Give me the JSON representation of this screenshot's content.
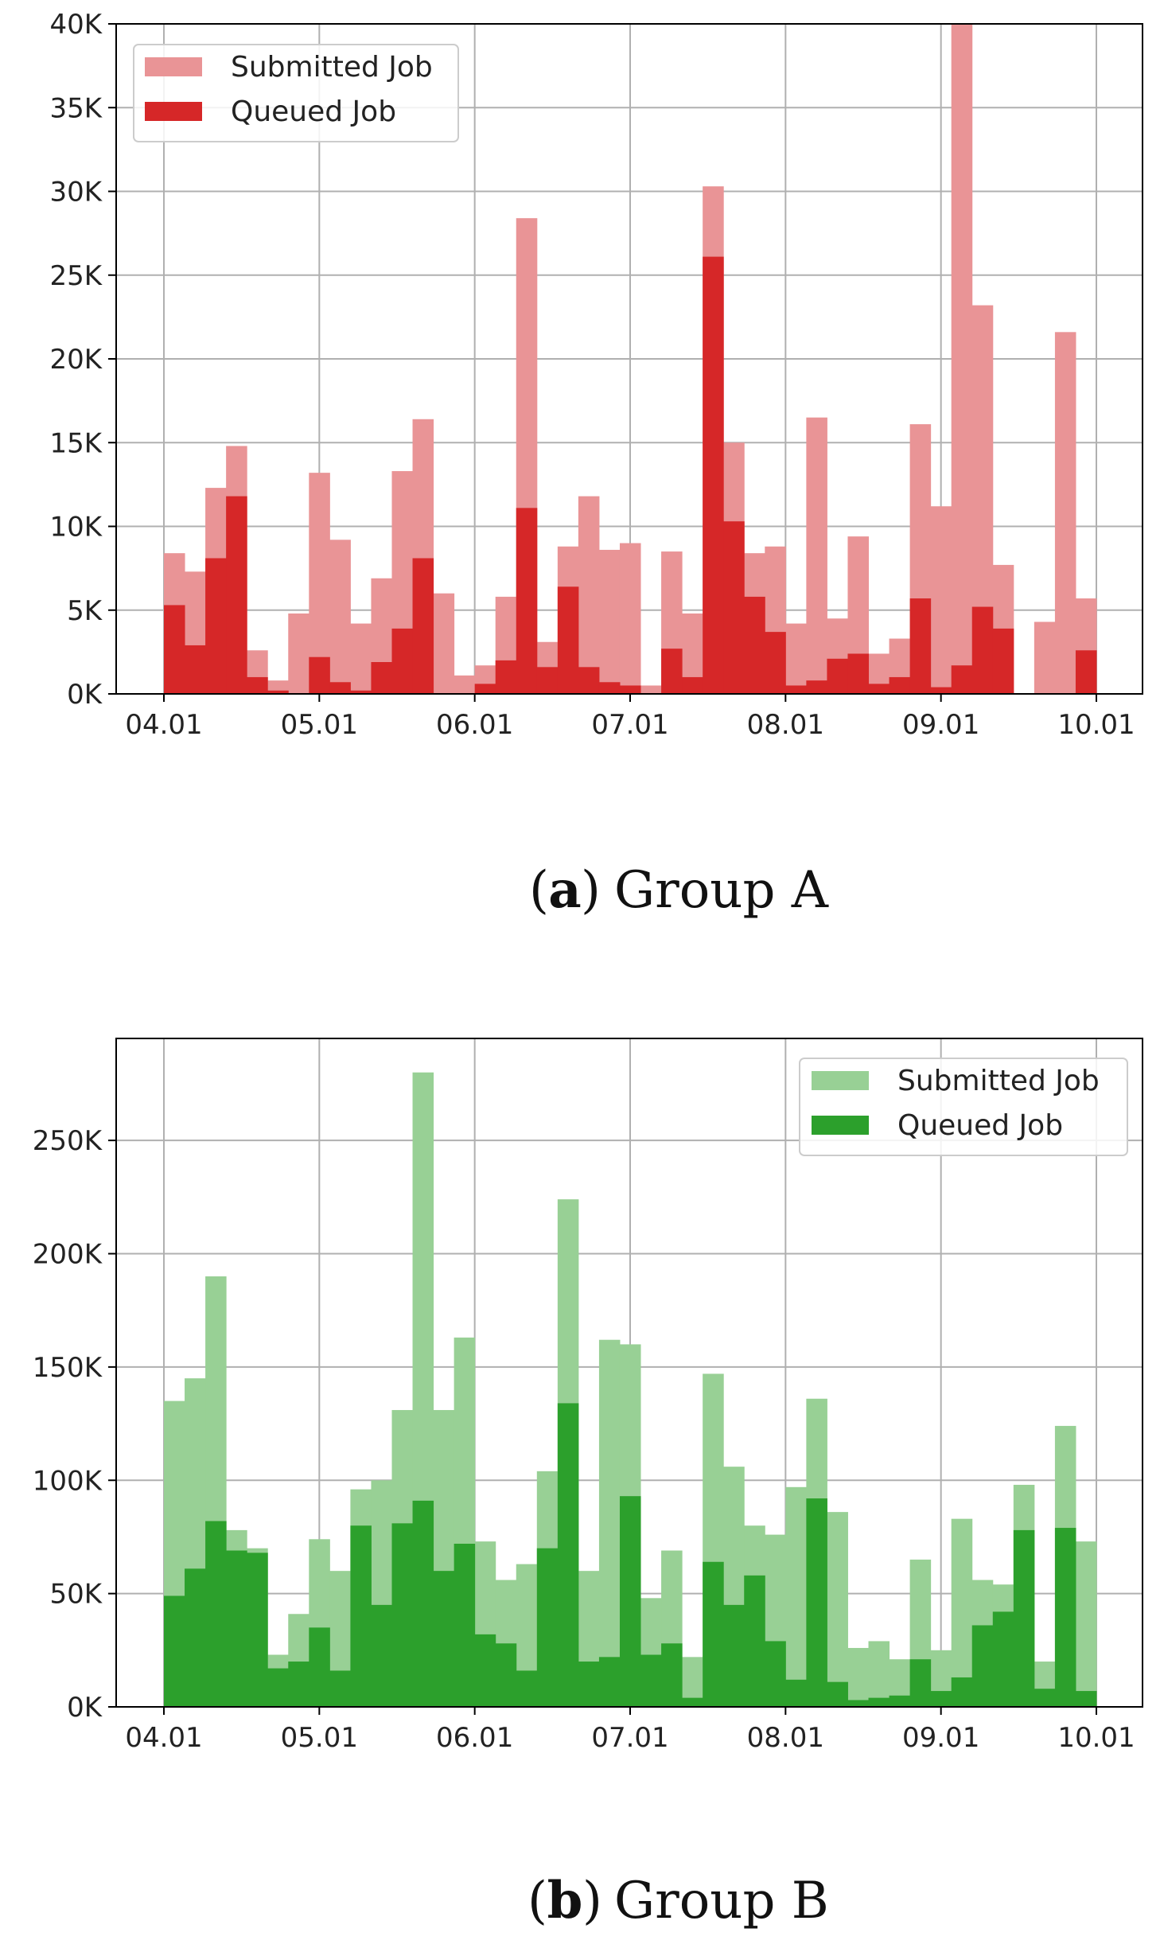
{
  "chart_data": [
    {
      "type": "bar",
      "panel": "a",
      "caption_letter": "a",
      "caption_text": "Group A",
      "colors": {
        "submitted": "#e99496",
        "queued": "#d62728"
      },
      "x_tick_labels": [
        "04.01",
        "05.01",
        "06.01",
        "07.01",
        "08.01",
        "09.01",
        "10.01"
      ],
      "y_tick_labels": [
        "0K",
        "5K",
        "10K",
        "15K",
        "20K",
        "25K",
        "30K",
        "35K",
        "40K"
      ],
      "y_tick_values": [
        0,
        5000,
        10000,
        15000,
        20000,
        25000,
        30000,
        35000,
        40000
      ],
      "ylim": [
        0,
        40000
      ],
      "legend_placement": "top-left",
      "bins": 45,
      "series": [
        {
          "name": "Submitted Job",
          "values": [
            8400,
            7300,
            12300,
            14800,
            2600,
            800,
            4800,
            13200,
            9200,
            4200,
            6900,
            13300,
            16400,
            6000,
            1100,
            1700,
            5800,
            28400,
            3100,
            8800,
            11800,
            8600,
            9000,
            500,
            8500,
            4800,
            30300,
            15000,
            8400,
            8800,
            4200,
            16500,
            4500,
            9400,
            2400,
            3300,
            16100,
            11200,
            40000,
            23200,
            7700,
            0,
            4300,
            21600,
            5700
          ]
        },
        {
          "name": "Queued Job",
          "values": [
            5300,
            2900,
            8100,
            11800,
            1000,
            200,
            0,
            2200,
            700,
            200,
            1900,
            3900,
            8100,
            0,
            0,
            600,
            2000,
            11100,
            1600,
            6400,
            1600,
            700,
            500,
            0,
            2700,
            1000,
            26100,
            10300,
            5800,
            3700,
            500,
            800,
            2100,
            2400,
            600,
            1000,
            5700,
            400,
            1700,
            5200,
            3900,
            0,
            0,
            0,
            2600
          ]
        }
      ]
    },
    {
      "type": "bar",
      "panel": "b",
      "caption_letter": "b",
      "caption_text": "Group B",
      "colors": {
        "submitted": "#98d095",
        "queued": "#2ca02c"
      },
      "x_tick_labels": [
        "04.01",
        "05.01",
        "06.01",
        "07.01",
        "08.01",
        "09.01",
        "10.01"
      ],
      "y_tick_labels": [
        "0K",
        "50K",
        "100K",
        "150K",
        "200K",
        "250K"
      ],
      "y_tick_values": [
        0,
        50000,
        100000,
        150000,
        200000,
        250000
      ],
      "ylim": [
        0,
        295000
      ],
      "legend_placement": "top-right",
      "bins": 45,
      "series": [
        {
          "name": "Submitted Job",
          "values": [
            135000,
            145000,
            190000,
            78000,
            70000,
            23000,
            41000,
            74000,
            60000,
            96000,
            100000,
            131000,
            280000,
            131000,
            163000,
            73000,
            56000,
            63000,
            104000,
            224000,
            60000,
            162000,
            160000,
            48000,
            69000,
            22000,
            147000,
            106000,
            80000,
            76000,
            97000,
            136000,
            86000,
            26000,
            29000,
            21000,
            65000,
            25000,
            83000,
            56000,
            54000,
            98000,
            20000,
            124000,
            73000
          ]
        },
        {
          "name": "Queued Job",
          "values": [
            49000,
            61000,
            82000,
            69000,
            68000,
            17000,
            20000,
            35000,
            16000,
            80000,
            45000,
            81000,
            91000,
            60000,
            72000,
            32000,
            28000,
            16000,
            70000,
            134000,
            20000,
            22000,
            93000,
            23000,
            28000,
            4000,
            64000,
            45000,
            58000,
            29000,
            12000,
            92000,
            11000,
            3000,
            4000,
            5000,
            21000,
            7000,
            13000,
            36000,
            42000,
            78000,
            8000,
            79000,
            7000
          ]
        }
      ]
    }
  ]
}
